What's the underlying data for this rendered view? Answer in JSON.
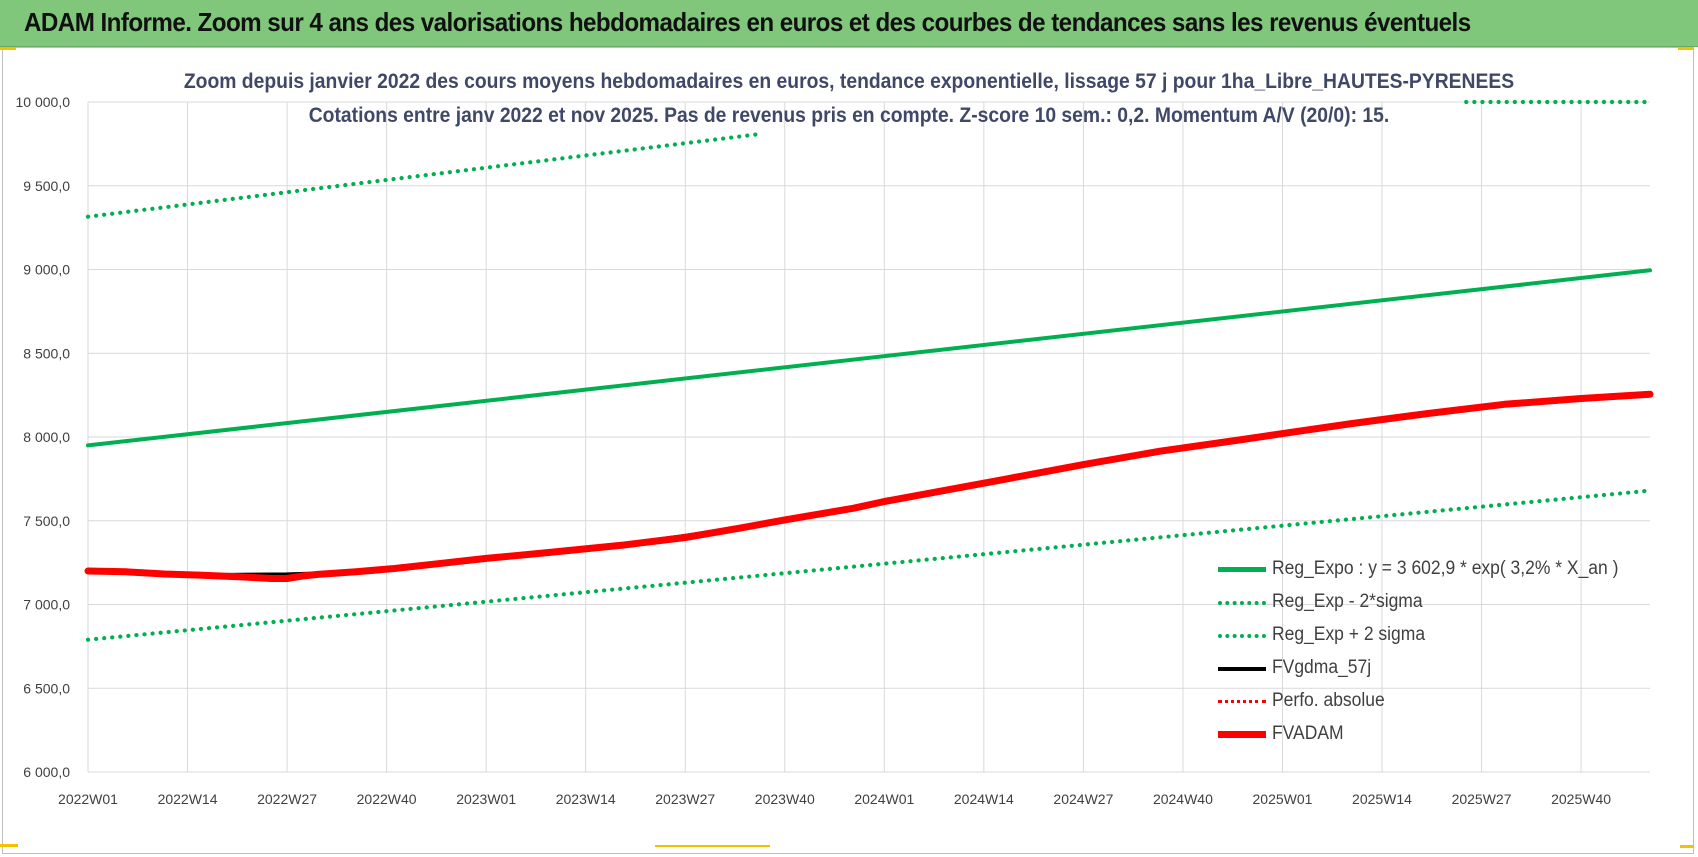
{
  "banner": {
    "title": "ADAM Informe. Zoom sur 4 ans des valorisations hebdomadaires en euros et des courbes de tendances sans les revenus éventuels"
  },
  "colors": {
    "banner_bg": "#80c77c",
    "trend_green": "#00b050",
    "series_black": "#000000",
    "series_red": "#ff0000",
    "title_text": "#404868",
    "grid": "#d9d9d9",
    "accent_yellow": "#f2c200"
  },
  "chart_data": {
    "type": "line",
    "title_line1": "Zoom depuis janvier 2022 des cours moyens hebdomadaires en euros, tendance exponentielle, lissage 57 j pour 1ha_Libre_HAUTES-PYRENEES",
    "title_line2": "Cotations entre janv 2022 et nov 2025. Pas de revenus pris en compte. Z-score 10 sem.: 0,2. Momentum A/V (20/0): 15.",
    "xlabel": "",
    "ylabel": "",
    "ylim": [
      6000,
      10000
    ],
    "y_ticks": [
      "10 000,0",
      "9 500,0",
      "9 000,0",
      "8 500,0",
      "8 000,0",
      "7 500,0",
      "7 000,0",
      "6 500,0",
      "6 000,0"
    ],
    "y_tick_values": [
      10000,
      9500,
      9000,
      8500,
      8000,
      7500,
      7000,
      6500,
      6000
    ],
    "x_ticks": [
      "2022W01",
      "2022W14",
      "2022W27",
      "2022W40",
      "2023W01",
      "2023W14",
      "2023W27",
      "2023W40",
      "2024W01",
      "2024W14",
      "2024W27",
      "2024W40",
      "2025W01",
      "2025W14",
      "2025W27",
      "2025W40"
    ],
    "x_tick_weeks": [
      0,
      13,
      26,
      39,
      52,
      65,
      78,
      91,
      104,
      117,
      130,
      143,
      156,
      169,
      182,
      195
    ],
    "x_max_week": 204,
    "grid": true,
    "legend_position": "bottom-right",
    "series": [
      {
        "name": "Reg_Expo : y = 3 602,9 * exp( 3,2% *  X_an )",
        "color": "#00b050",
        "style": "solid",
        "weight": "medium",
        "x": [
          0,
          204
        ],
        "values": [
          7950,
          8995
        ]
      },
      {
        "name": "Reg_Exp - 2*sigma",
        "color": "#00b050",
        "style": "dotted",
        "weight": "medium",
        "x": [
          0,
          204
        ],
        "values": [
          6790,
          7680
        ]
      },
      {
        "name": "Reg_Exp + 2 sigma",
        "color": "#00b050",
        "style": "dotted",
        "weight": "medium",
        "x": [
          0,
          88
        ],
        "values": [
          9315,
          9810
        ],
        "x_extra": [
          180,
          204
        ],
        "values_extra": [
          10000,
          10000
        ]
      },
      {
        "name": "FVgdma_57j",
        "color": "#000000",
        "style": "solid",
        "weight": "medium",
        "x": [
          0,
          5,
          10,
          15,
          20,
          26,
          30,
          35,
          40,
          45,
          52,
          60,
          70,
          78,
          85,
          91,
          100,
          104,
          110,
          120,
          130,
          140,
          150,
          156,
          165,
          175,
          185,
          195,
          204
        ],
        "values": [
          7200,
          7192,
          7180,
          7175,
          7178,
          7180,
          7185,
          7195,
          7215,
          7240,
          7275,
          7310,
          7360,
          7410,
          7460,
          7510,
          7575,
          7615,
          7665,
          7750,
          7835,
          7910,
          7975,
          8020,
          8080,
          8140,
          8195,
          8230,
          8250
        ]
      },
      {
        "name": "Perfo. absolue",
        "color": "#ff0000",
        "style": "dotted",
        "weight": "thin",
        "x": [],
        "values": []
      },
      {
        "name": "FVADAM",
        "color": "#ff0000",
        "style": "solid",
        "weight": "thick",
        "x": [
          0,
          5,
          10,
          15,
          20,
          24,
          26,
          28,
          30,
          35,
          40,
          45,
          52,
          60,
          70,
          78,
          85,
          91,
          100,
          104,
          110,
          120,
          130,
          140,
          150,
          156,
          165,
          175,
          185,
          195,
          204
        ],
        "values": [
          7200,
          7195,
          7182,
          7175,
          7165,
          7155,
          7155,
          7170,
          7180,
          7195,
          7215,
          7240,
          7275,
          7310,
          7355,
          7400,
          7455,
          7505,
          7575,
          7615,
          7665,
          7750,
          7835,
          7915,
          7980,
          8020,
          8080,
          8140,
          8195,
          8230,
          8255
        ]
      }
    ]
  }
}
